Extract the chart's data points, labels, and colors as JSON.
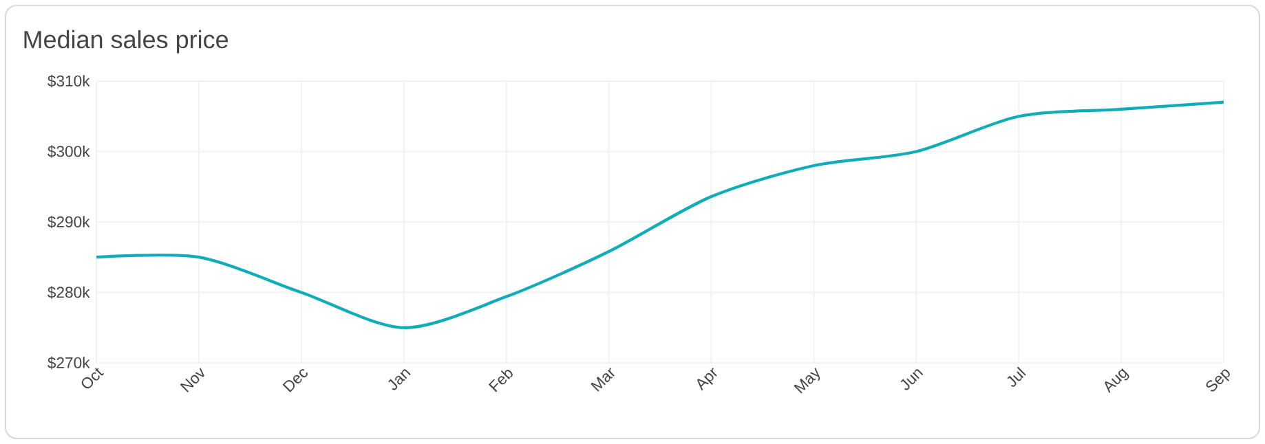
{
  "chart_data": {
    "type": "line",
    "title": "Median sales price",
    "categories": [
      "Oct",
      "Nov",
      "Dec",
      "Jan",
      "Feb",
      "Mar",
      "Apr",
      "May",
      "Jun",
      "Jul",
      "Aug",
      "Sep"
    ],
    "values": [
      285,
      285,
      280,
      275,
      279.4,
      285.8,
      293.6,
      298,
      300,
      305,
      306,
      307
    ],
    "color": "#10adb9",
    "ylim": [
      270,
      310
    ],
    "yticks": [
      {
        "value": 270,
        "label": "$270k"
      },
      {
        "value": 280,
        "label": "$280k"
      },
      {
        "value": 290,
        "label": "$290k"
      },
      {
        "value": 300,
        "label": "$300k"
      },
      {
        "value": 310,
        "label": "$310k"
      }
    ],
    "grid": true,
    "marker": "none",
    "line_style": "solid"
  }
}
